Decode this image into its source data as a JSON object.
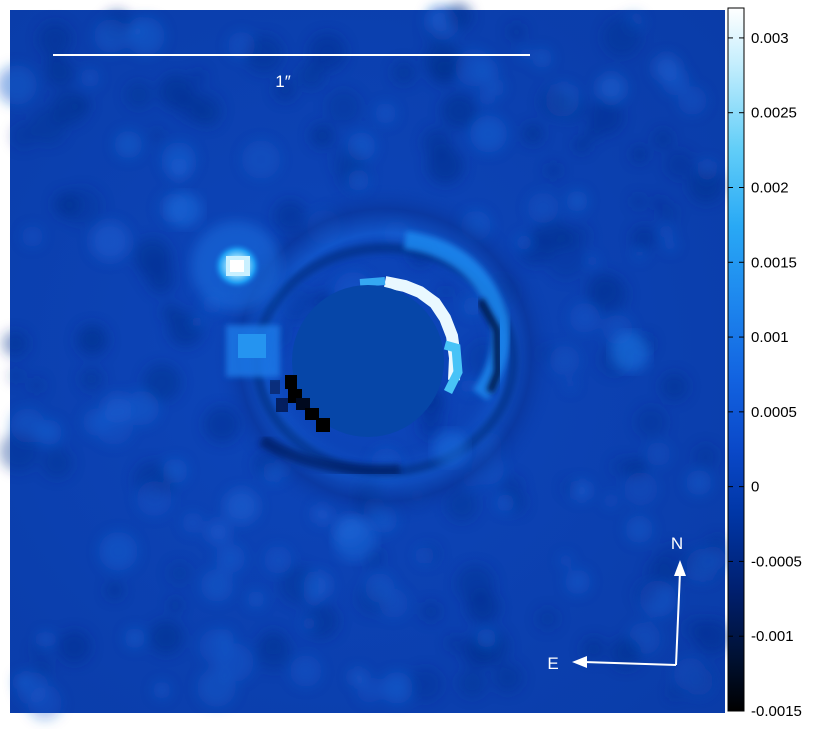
{
  "image": {
    "scale_bar_label": "1″",
    "compass": {
      "north_label": "N",
      "east_label": "E"
    },
    "palette": {
      "background": "#0a3fb0",
      "highlight": "#ffffff",
      "mask": "#0646a8"
    }
  },
  "colorbar": {
    "tick_labels": [
      "0.003",
      "0.0025",
      "0.002",
      "0.0015",
      "0.001",
      "0.0005",
      "0",
      "-0.0005",
      "-0.001",
      "-0.0015"
    ],
    "range": [
      -0.0015,
      0.0032
    ],
    "colors": [
      "#000000",
      "#00102f",
      "#001f6e",
      "#0036a6",
      "#0a48c8",
      "#1262e0",
      "#1d86ee",
      "#29a9f5",
      "#62cef8",
      "#c4eefd",
      "#ffffff"
    ]
  }
}
